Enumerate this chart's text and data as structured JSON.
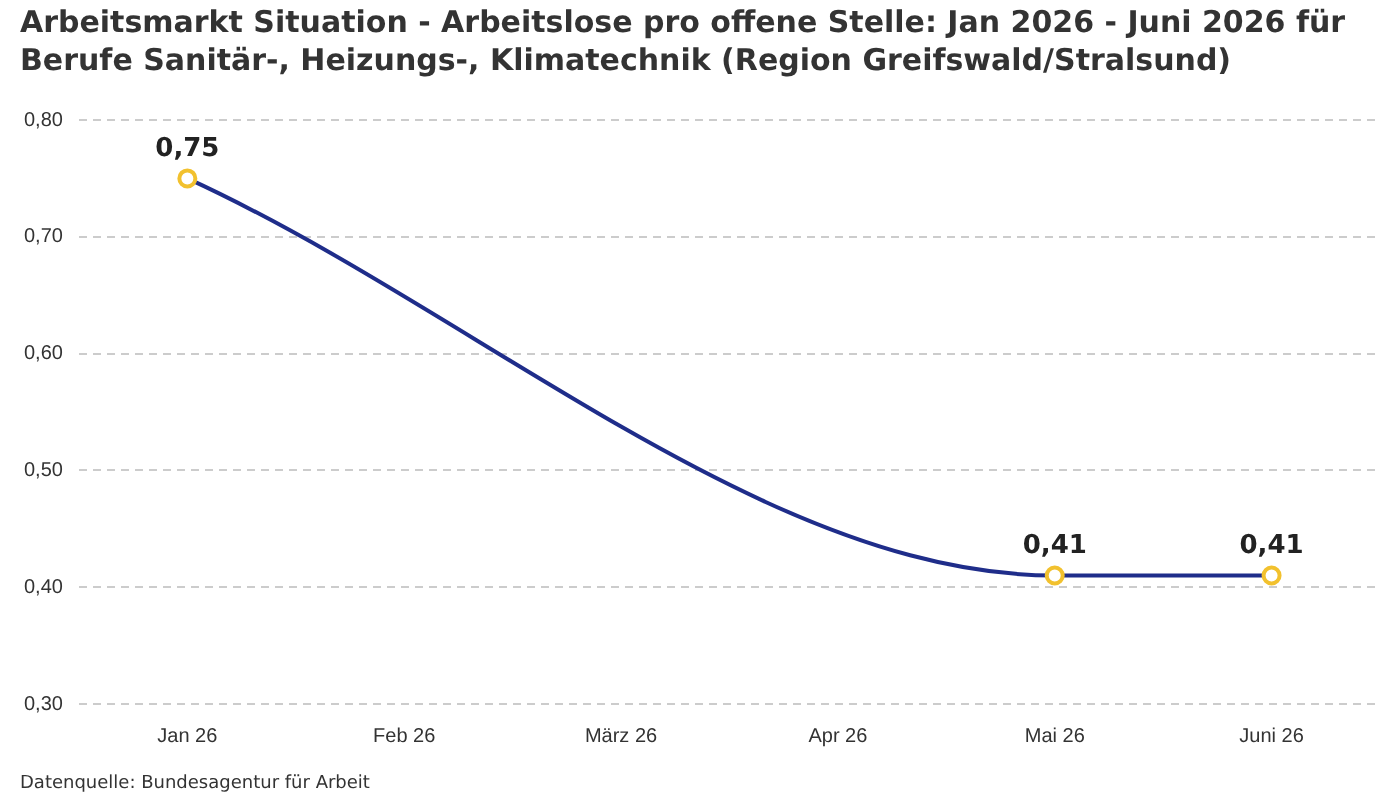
{
  "chart_data": {
    "type": "line",
    "title": "Arbeitsmarkt Situation - Arbeitslose pro offene Stelle: Jan 2026 - Juni 2026 für Berufe Sanitär-, Heizungs-, Klimatechnik (Region Greifswald/Stralsund)",
    "categories": [
      "Jan 26",
      "Feb 26",
      "März 26",
      "Apr 26",
      "Mai 26",
      "Juni 26"
    ],
    "series": [
      {
        "color": "#1f2d8a",
        "values": [
          0.75,
          null,
          null,
          null,
          0.41,
          0.41
        ],
        "value_labels": [
          "0,75",
          null,
          null,
          null,
          "0,41",
          "0,41"
        ]
      }
    ],
    "ylim": [
      0.3,
      0.8
    ],
    "yticks": [
      {
        "value": 0.3,
        "label": "0,30"
      },
      {
        "value": 0.4,
        "label": "0,40"
      },
      {
        "value": 0.5,
        "label": "0,50"
      },
      {
        "value": 0.6,
        "label": "0,60"
      },
      {
        "value": 0.7,
        "label": "0,70"
      },
      {
        "value": 0.8,
        "label": "0,80"
      }
    ],
    "grid": "y",
    "legend": false,
    "marker": "circle",
    "annotations": [
      "Datenquelle: Bundesagentur für Arbeit"
    ]
  }
}
